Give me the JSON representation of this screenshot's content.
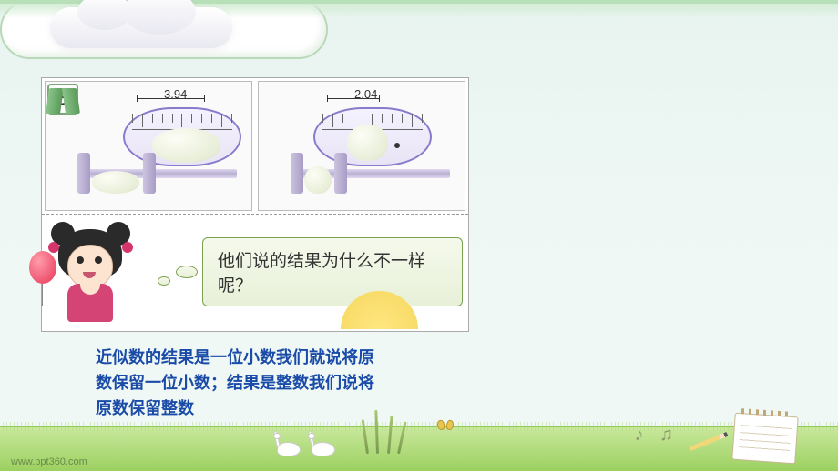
{
  "clouds": {
    "count": 2
  },
  "figure": {
    "badge_number": "5",
    "panel_left": {
      "measurement": "3.94",
      "egg_type": "oval-egg",
      "ruler": {
        "ticks": [
          1,
          2,
          3,
          4,
          5
        ]
      },
      "caliper_color": "#b8b0d0"
    },
    "panel_right": {
      "measurement": "2.04",
      "egg_type": "round-egg-with-dot",
      "ruler": {
        "ticks": [
          1,
          2,
          3,
          4,
          5
        ]
      },
      "caliper_color": "#b8b0d0"
    },
    "character": {
      "name": "girl",
      "hair_color": "#2a2a2a",
      "dress_color": "#d44575",
      "balloon_color": "#e73558"
    },
    "speech_bubble": "他们说的结果为什么不一样呢？",
    "speech_bg": "#e8f0d8",
    "speech_border": "#7aa050"
  },
  "body_text": {
    "line1": "近似数的结果是一位小数我们就说将原",
    "line2": "数保留一位小数；结果是整数我们说将",
    "line3": "原数保留整数",
    "color": "#1a4ba8",
    "fontsize": 18
  },
  "decorations": {
    "swans": 2,
    "reeds": 4,
    "butterfly": true,
    "music_notes": "♪ ♫",
    "notebook": true,
    "pencil": true,
    "sun": true
  },
  "footer": "www.ppt360.com",
  "theme": {
    "sky_color": "#e8f4f0",
    "grass_color": "#9cd060",
    "border_color": "#b8e0b8"
  }
}
